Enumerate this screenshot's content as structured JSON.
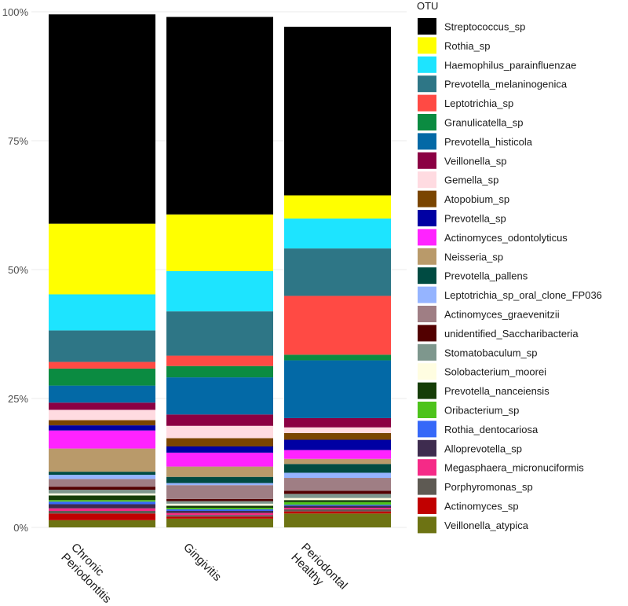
{
  "chart_data": {
    "type": "bar",
    "stacked": true,
    "legend_title": "OTU",
    "legend_position": "right",
    "ylim": [
      0,
      1
    ],
    "yticks": [
      "0%",
      "25%",
      "50%",
      "75%",
      "100%"
    ],
    "ytick_values": [
      0,
      0.25,
      0.5,
      0.75,
      1.0
    ],
    "grid": true,
    "categories": [
      "Chronic\nPeriodontitis",
      "Gingivitis",
      "Periodontal\nHealthy"
    ],
    "category_lines": [
      [
        "Chronic",
        "Periodontitis"
      ],
      [
        "Gingivitis"
      ],
      [
        "Periodontal",
        "Healthy"
      ]
    ],
    "series": [
      {
        "name": "Streptococcus_sp",
        "color": "#000000",
        "values": [
          0.406,
          0.383,
          0.327
        ]
      },
      {
        "name": "Rothia_sp",
        "color": "#ffff00",
        "values": [
          0.137,
          0.11,
          0.045
        ]
      },
      {
        "name": "Haemophilus_parainfluenzae",
        "color": "#1de4ff",
        "values": [
          0.07,
          0.078,
          0.058
        ]
      },
      {
        "name": "Prevotella_melaninogenica",
        "color": "#2e7686",
        "values": [
          0.061,
          0.086,
          0.092
        ]
      },
      {
        "name": "Leptotrichia_sp",
        "color": "#ff4a44",
        "values": [
          0.013,
          0.02,
          0.114
        ]
      },
      {
        "name": "Granulicatella_sp",
        "color": "#0b8b41",
        "values": [
          0.033,
          0.022,
          0.011
        ]
      },
      {
        "name": "Prevotella_histicola",
        "color": "#0369a6",
        "values": [
          0.033,
          0.072,
          0.112
        ]
      },
      {
        "name": "Veillonella_sp",
        "color": "#8b0043",
        "values": [
          0.014,
          0.022,
          0.018
        ]
      },
      {
        "name": "Gemella_sp",
        "color": "#ffdbe1",
        "values": [
          0.02,
          0.024,
          0.011
        ]
      },
      {
        "name": "Atopobium_sp",
        "color": "#7a4500",
        "values": [
          0.01,
          0.016,
          0.013
        ]
      },
      {
        "name": "Prevotella_sp",
        "color": "#0000a3",
        "values": [
          0.01,
          0.012,
          0.02
        ]
      },
      {
        "name": "Actinomyces_odontolyticus",
        "color": "#ff23ff",
        "values": [
          0.035,
          0.027,
          0.017
        ]
      },
      {
        "name": "Neisseria_sp",
        "color": "#b99a6a",
        "values": [
          0.045,
          0.02,
          0.01
        ]
      },
      {
        "name": "Prevotella_pallens",
        "color": "#004b42",
        "values": [
          0.006,
          0.012,
          0.017
        ]
      },
      {
        "name": "Leptotrichia_sp_oral_clone_FP036",
        "color": "#95b4ff",
        "values": [
          0.008,
          0.004,
          0.01
        ]
      },
      {
        "name": "Actinomyces_graevenitzii",
        "color": "#9f7e84",
        "values": [
          0.015,
          0.027,
          0.025
        ]
      },
      {
        "name": "unidentified_Saccharibacteria",
        "color": "#520000",
        "values": [
          0.006,
          0.004,
          0.006
        ]
      },
      {
        "name": "Stomatobaculum_sp",
        "color": "#7e978d",
        "values": [
          0.007,
          0.005,
          0.008
        ]
      },
      {
        "name": "Solobacterium_moorei",
        "color": "#fffde1",
        "values": [
          0.004,
          0.004,
          0.004
        ]
      },
      {
        "name": "Prevotella_nanceiensis",
        "color": "#153d07",
        "values": [
          0.009,
          0.004,
          0.004
        ]
      },
      {
        "name": "Oribacterium_sp",
        "color": "#4dc31b",
        "values": [
          0.003,
          0.003,
          0.005
        ]
      },
      {
        "name": "Rothia_dentocariosa",
        "color": "#3668f8",
        "values": [
          0.005,
          0.003,
          0.002
        ]
      },
      {
        "name": "Alloprevotella_sp",
        "color": "#3e2c4f",
        "values": [
          0.008,
          0.004,
          0.004
        ]
      },
      {
        "name": "Megasphaera_micronuciformis",
        "color": "#f52a87",
        "values": [
          0.005,
          0.004,
          0.003
        ]
      },
      {
        "name": "Porphyromonas_sp",
        "color": "#5e5a53",
        "values": [
          0.005,
          0.003,
          0.004
        ]
      },
      {
        "name": "Actinomyces_sp",
        "color": "#c10000",
        "values": [
          0.013,
          0.004,
          0.004
        ]
      },
      {
        "name": "Veillonella_atypica",
        "color": "#6d7313",
        "values": [
          0.014,
          0.017,
          0.027
        ]
      }
    ]
  }
}
